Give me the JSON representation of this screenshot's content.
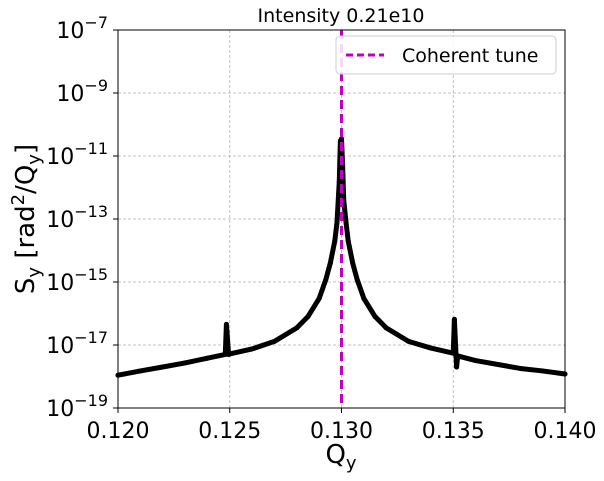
{
  "chart_data": {
    "type": "line",
    "title": "Intensity 0.21e10",
    "xlabel": "Q",
    "xlabel_sub": "y",
    "ylabel_parts": [
      "S",
      "y",
      " [rad",
      "2",
      "/Q",
      "y",
      "]"
    ],
    "xlim": [
      0.12,
      0.14
    ],
    "ylim": [
      1e-19,
      1e-07
    ],
    "yscale": "log",
    "grid": true,
    "legend_position": "top-right",
    "x_ticks": [
      "0.120",
      "0.125",
      "0.130",
      "0.135",
      "0.140"
    ],
    "x_tick_values": [
      0.12,
      0.125,
      0.13,
      0.135,
      0.14
    ],
    "y_tick_exponents": [
      -19,
      -17,
      -15,
      -13,
      -11,
      -9,
      -7
    ],
    "series": [
      {
        "color": "#000000",
        "x": [
          0.12,
          0.121,
          0.122,
          0.123,
          0.124,
          0.1248,
          0.12485,
          0.12495,
          0.125,
          0.126,
          0.127,
          0.128,
          0.1285,
          0.129,
          0.1293,
          0.1295,
          0.1297,
          0.1298,
          0.1299,
          0.12995,
          0.13,
          0.13005,
          0.1301,
          0.1302,
          0.1303,
          0.1305,
          0.1307,
          0.131,
          0.1315,
          0.132,
          0.133,
          0.134,
          0.135,
          0.13505,
          0.13515,
          0.1352,
          0.136,
          0.137,
          0.138,
          0.139,
          0.14
        ],
        "y": [
          1.1e-18,
          1.5e-18,
          2e-18,
          2.7e-18,
          3.8e-18,
          5e-18,
          4.5e-17,
          5e-18,
          5.2e-18,
          7.5e-18,
          1.3e-17,
          3.5e-17,
          8e-17,
          3e-16,
          1.2e-15,
          4e-15,
          2e-14,
          8e-14,
          1.5e-12,
          3e-11,
          3.5e-11,
          5e-12,
          4e-13,
          8e-14,
          2e-14,
          4e-15,
          1.2e-15,
          3e-16,
          8e-17,
          3.5e-17,
          1.3e-17,
          8e-18,
          5.5e-18,
          6.5e-17,
          2e-18,
          4.5e-18,
          3.2e-18,
          2.4e-18,
          1.8e-18,
          1.5e-18,
          1.2e-18
        ]
      }
    ],
    "vline": {
      "x": 0.13,
      "color": "#bf00bf",
      "label": "Coherent tune"
    }
  }
}
